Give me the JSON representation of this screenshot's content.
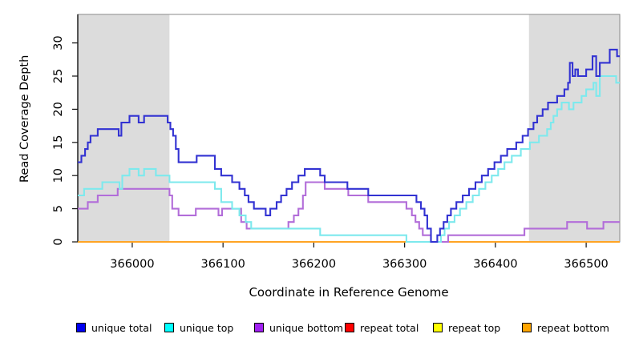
{
  "figure": {
    "ylabel": "Read Coverage Depth",
    "xlabel": "Coordinate in Reference Genome"
  },
  "legend": {
    "items": [
      {
        "label": "unique total",
        "color": "#0000f0"
      },
      {
        "label": "unique top",
        "color": "#00ffff"
      },
      {
        "label": "unique bottom",
        "color": "#a020f0"
      },
      {
        "label": "repeat total",
        "color": "#ff0000"
      },
      {
        "label": "repeat top",
        "color": "#ffff00"
      },
      {
        "label": "repeat bottom",
        "color": "#ffa500"
      }
    ]
  },
  "chart_data": {
    "type": "line",
    "step": true,
    "title": "",
    "xlabel": "Coordinate in Reference Genome",
    "ylabel": "Read Coverage Depth",
    "xlim": [
      365940,
      366537
    ],
    "ylim": [
      0,
      34.3
    ],
    "x_ticks": [
      366000,
      366100,
      366200,
      366300,
      366400,
      366500
    ],
    "y_ticks": [
      0,
      5,
      10,
      15,
      20,
      25,
      30
    ],
    "grid": false,
    "legend_position": "bottom",
    "background": "#ffffff",
    "shaded_region_color": "#dcdcdc",
    "shaded_regions": [
      {
        "x0": 365940,
        "x1": 366041
      },
      {
        "x0": 366437,
        "x1": 366537
      }
    ],
    "series": [
      {
        "name": "repeat total",
        "line_color": "#dd2222",
        "values": [
          [
            365940,
            0
          ]
        ]
      },
      {
        "name": "repeat top",
        "line_color": "#ffee00",
        "values": [
          [
            365940,
            0
          ]
        ]
      },
      {
        "name": "repeat bottom",
        "line_color": "#ffa424",
        "values": [
          [
            365940,
            0
          ]
        ]
      },
      {
        "name": "unique bottom",
        "line_color": "#b26dd9",
        "values": [
          [
            365940,
            5
          ],
          [
            365951,
            6
          ],
          [
            365962,
            7
          ],
          [
            365984,
            8
          ],
          [
            366041,
            7
          ],
          [
            366044,
            5
          ],
          [
            366051,
            4
          ],
          [
            366070,
            5
          ],
          [
            366095,
            4
          ],
          [
            366099,
            5
          ],
          [
            366120,
            3
          ],
          [
            366126,
            2
          ],
          [
            366172,
            3
          ],
          [
            366178,
            4
          ],
          [
            366183,
            5
          ],
          [
            366188,
            7
          ],
          [
            366191,
            9
          ],
          [
            366212,
            8
          ],
          [
            366238,
            7
          ],
          [
            366260,
            6
          ],
          [
            366302,
            5
          ],
          [
            366308,
            4
          ],
          [
            366312,
            3
          ],
          [
            366316,
            2
          ],
          [
            366320,
            1
          ],
          [
            366329,
            0
          ],
          [
            366348,
            1
          ],
          [
            366432,
            2
          ],
          [
            366479,
            3
          ],
          [
            366501,
            2
          ],
          [
            366519,
            3
          ]
        ]
      },
      {
        "name": "unique top",
        "line_color": "#7de9ed",
        "values": [
          [
            365940,
            7
          ],
          [
            365947,
            8
          ],
          [
            365967,
            9
          ],
          [
            365986,
            8
          ],
          [
            365989,
            10
          ],
          [
            365997,
            11
          ],
          [
            366007,
            10
          ],
          [
            366013,
            11
          ],
          [
            366026,
            10
          ],
          [
            366041,
            9
          ],
          [
            366091,
            8
          ],
          [
            366098,
            6
          ],
          [
            366110,
            5
          ],
          [
            366118,
            4
          ],
          [
            366125,
            3
          ],
          [
            366131,
            2
          ],
          [
            366207,
            1
          ],
          [
            366302,
            0
          ],
          [
            366340,
            1
          ],
          [
            366344,
            2
          ],
          [
            366349,
            3
          ],
          [
            366355,
            4
          ],
          [
            366361,
            5
          ],
          [
            366368,
            6
          ],
          [
            366375,
            7
          ],
          [
            366382,
            8
          ],
          [
            366389,
            9
          ],
          [
            366396,
            10
          ],
          [
            366403,
            11
          ],
          [
            366410,
            12
          ],
          [
            366418,
            13
          ],
          [
            366428,
            14
          ],
          [
            366438,
            15
          ],
          [
            366448,
            16
          ],
          [
            366457,
            17
          ],
          [
            366461,
            18
          ],
          [
            366464,
            19
          ],
          [
            366468,
            20
          ],
          [
            366473,
            21
          ],
          [
            366481,
            20
          ],
          [
            366486,
            21
          ],
          [
            366495,
            22
          ],
          [
            366500,
            23
          ],
          [
            366508,
            24
          ],
          [
            366511,
            22
          ],
          [
            366515,
            25
          ],
          [
            366533,
            24
          ]
        ]
      },
      {
        "name": "unique total",
        "line_color": "#3232d2",
        "values": [
          [
            365940,
            12
          ],
          [
            365944,
            13
          ],
          [
            365948,
            14
          ],
          [
            365951,
            15
          ],
          [
            365954,
            16
          ],
          [
            365962,
            17
          ],
          [
            365985,
            16
          ],
          [
            365988,
            18
          ],
          [
            365997,
            19
          ],
          [
            366007,
            18
          ],
          [
            366013,
            19
          ],
          [
            366039,
            18
          ],
          [
            366042,
            17
          ],
          [
            366045,
            16
          ],
          [
            366048,
            14
          ],
          [
            366051,
            12
          ],
          [
            366071,
            13
          ],
          [
            366091,
            11
          ],
          [
            366098,
            10
          ],
          [
            366110,
            9
          ],
          [
            366118,
            8
          ],
          [
            366124,
            7
          ],
          [
            366128,
            6
          ],
          [
            366134,
            5
          ],
          [
            366147,
            4
          ],
          [
            366152,
            5
          ],
          [
            366159,
            6
          ],
          [
            366164,
            7
          ],
          [
            366170,
            8
          ],
          [
            366176,
            9
          ],
          [
            366183,
            10
          ],
          [
            366190,
            11
          ],
          [
            366207,
            10
          ],
          [
            366212,
            9
          ],
          [
            366237,
            8
          ],
          [
            366260,
            7
          ],
          [
            366313,
            6
          ],
          [
            366318,
            5
          ],
          [
            366322,
            4
          ],
          [
            366325,
            2
          ],
          [
            366329,
            0
          ],
          [
            366336,
            1
          ],
          [
            366339,
            2
          ],
          [
            366343,
            3
          ],
          [
            366347,
            4
          ],
          [
            366351,
            5
          ],
          [
            366357,
            6
          ],
          [
            366364,
            7
          ],
          [
            366371,
            8
          ],
          [
            366378,
            9
          ],
          [
            366385,
            10
          ],
          [
            366392,
            11
          ],
          [
            366399,
            12
          ],
          [
            366406,
            13
          ],
          [
            366413,
            14
          ],
          [
            366423,
            15
          ],
          [
            366430,
            16
          ],
          [
            366436,
            17
          ],
          [
            366442,
            18
          ],
          [
            366446,
            19
          ],
          [
            366452,
            20
          ],
          [
            366458,
            21
          ],
          [
            366468,
            22
          ],
          [
            366476,
            23
          ],
          [
            366480,
            24
          ],
          [
            366482,
            27
          ],
          [
            366485,
            25
          ],
          [
            366488,
            26
          ],
          [
            366491,
            25
          ],
          [
            366500,
            26
          ],
          [
            366507,
            28
          ],
          [
            366511,
            25
          ],
          [
            366515,
            27
          ],
          [
            366526,
            29
          ],
          [
            366534,
            28
          ]
        ]
      }
    ]
  }
}
